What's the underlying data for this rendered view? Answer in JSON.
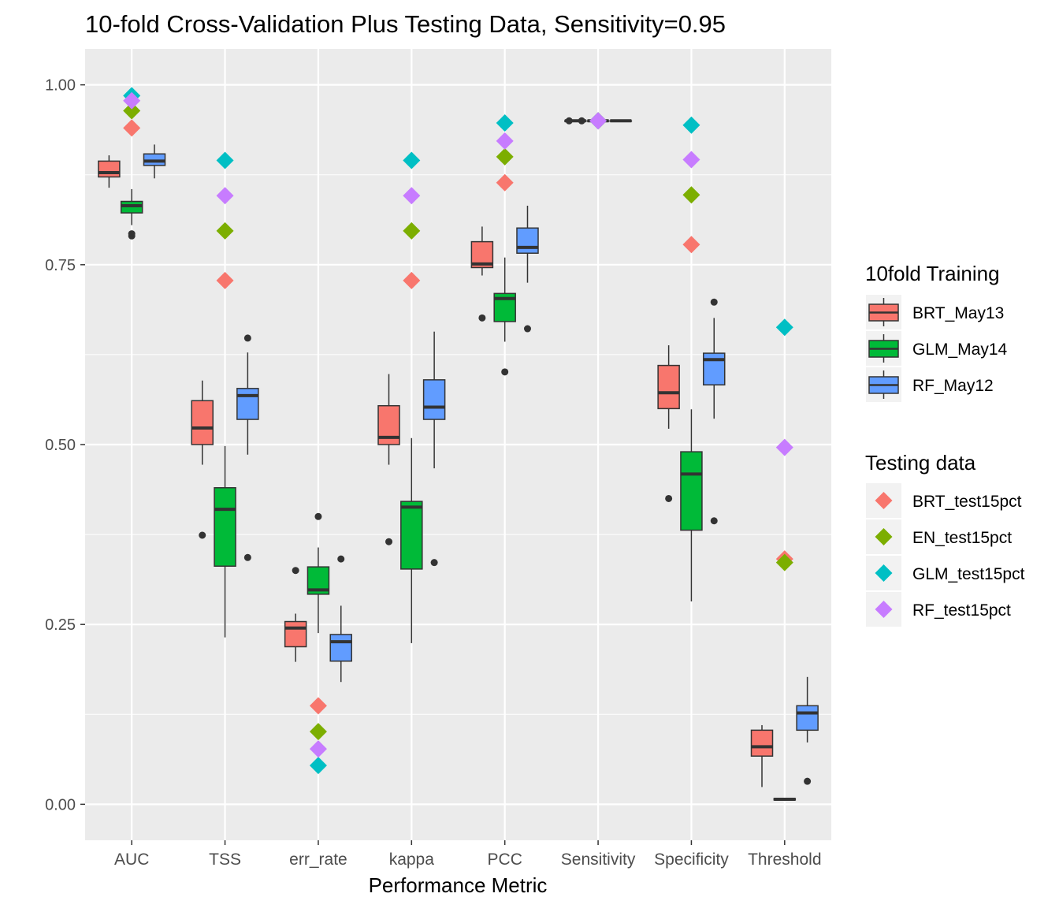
{
  "chart_data": {
    "type": "boxplot",
    "title": "10-fold Cross-Validation Plus Testing Data, Sensitivity=0.95",
    "xlabel": "Performance Metric",
    "ylabel": "",
    "ylim": [
      -0.05,
      1.05
    ],
    "yticks": [
      "0.00",
      "0.25",
      "0.50",
      "0.75",
      "1.00"
    ],
    "categories": [
      "AUC",
      "TSS",
      "err_rate",
      "kappa",
      "PCC",
      "Sensitivity",
      "Specificity",
      "Threshold"
    ],
    "background": "#EBEBEB",
    "grid": true,
    "legend_position": "right",
    "legends": [
      {
        "title": "10fold Training",
        "entries": [
          {
            "name": "BRT_May13",
            "color": "#F8766D"
          },
          {
            "name": "GLM_May14",
            "color": "#00BA38"
          },
          {
            "name": "RF_May12",
            "color": "#619CFF"
          }
        ]
      },
      {
        "title": "Testing data",
        "entries": [
          {
            "name": "BRT_test15pct",
            "color": "#F8766D"
          },
          {
            "name": "EN_test15pct",
            "color": "#7CAE00"
          },
          {
            "name": "GLM_test15pct",
            "color": "#00BFC4"
          },
          {
            "name": "RF_test15pct",
            "color": "#C77CFF"
          }
        ]
      }
    ],
    "box_series": [
      {
        "name": "BRT_May13",
        "color": "#F8766D",
        "boxes": [
          {
            "category": "AUC",
            "whisker_low": 0.857,
            "q1": 0.872,
            "median": 0.878,
            "q3": 0.894,
            "whisker_high": 0.902,
            "outliers": []
          },
          {
            "category": "TSS",
            "whisker_low": 0.472,
            "q1": 0.5,
            "median": 0.523,
            "q3": 0.561,
            "whisker_high": 0.589,
            "outliers": [
              0.374
            ]
          },
          {
            "category": "err_rate",
            "whisker_low": 0.198,
            "q1": 0.219,
            "median": 0.245,
            "q3": 0.254,
            "whisker_high": 0.265,
            "outliers": [
              0.325
            ]
          },
          {
            "category": "kappa",
            "whisker_low": 0.472,
            "q1": 0.5,
            "median": 0.51,
            "q3": 0.554,
            "whisker_high": 0.598,
            "outliers": [
              0.365
            ]
          },
          {
            "category": "PCC",
            "whisker_low": 0.735,
            "q1": 0.746,
            "median": 0.751,
            "q3": 0.782,
            "whisker_high": 0.803,
            "outliers": [
              0.676
            ]
          },
          {
            "category": "Sensitivity",
            "whisker_low": 0.95,
            "q1": 0.95,
            "median": 0.95,
            "q3": 0.95,
            "whisker_high": 0.95,
            "outliers": [
              0.95,
              0.95
            ]
          },
          {
            "category": "Specificity",
            "whisker_low": 0.522,
            "q1": 0.55,
            "median": 0.572,
            "q3": 0.61,
            "whisker_high": 0.638,
            "outliers": [
              0.425
            ]
          },
          {
            "category": "Threshold",
            "whisker_low": 0.024,
            "q1": 0.067,
            "median": 0.08,
            "q3": 0.103,
            "whisker_high": 0.11,
            "outliers": []
          }
        ]
      },
      {
        "name": "GLM_May14",
        "color": "#00BA38",
        "boxes": [
          {
            "category": "AUC",
            "whisker_low": 0.805,
            "q1": 0.822,
            "median": 0.832,
            "q3": 0.838,
            "whisker_high": 0.855,
            "outliers": [
              0.79,
              0.793
            ]
          },
          {
            "category": "TSS",
            "whisker_low": 0.232,
            "q1": 0.331,
            "median": 0.41,
            "q3": 0.44,
            "whisker_high": 0.498,
            "outliers": []
          },
          {
            "category": "err_rate",
            "whisker_low": 0.238,
            "q1": 0.292,
            "median": 0.298,
            "q3": 0.33,
            "whisker_high": 0.357,
            "outliers": [
              0.4
            ]
          },
          {
            "category": "kappa",
            "whisker_low": 0.224,
            "q1": 0.327,
            "median": 0.413,
            "q3": 0.421,
            "whisker_high": 0.509,
            "outliers": []
          },
          {
            "category": "PCC",
            "whisker_low": 0.643,
            "q1": 0.671,
            "median": 0.703,
            "q3": 0.71,
            "whisker_high": 0.76,
            "outliers": [
              0.601
            ]
          },
          {
            "category": "Sensitivity",
            "whisker_low": 0.95,
            "q1": 0.95,
            "median": 0.95,
            "q3": 0.95,
            "whisker_high": 0.95,
            "outliers": []
          },
          {
            "category": "Specificity",
            "whisker_low": 0.282,
            "q1": 0.381,
            "median": 0.459,
            "q3": 0.49,
            "whisker_high": 0.549,
            "outliers": []
          },
          {
            "category": "Threshold",
            "whisker_low": 0.006,
            "q1": 0.006,
            "median": 0.007,
            "q3": 0.008,
            "whisker_high": 0.008,
            "outliers": []
          }
        ]
      },
      {
        "name": "RF_May12",
        "color": "#619CFF",
        "boxes": [
          {
            "category": "AUC",
            "whisker_low": 0.87,
            "q1": 0.888,
            "median": 0.894,
            "q3": 0.904,
            "whisker_high": 0.917,
            "outliers": []
          },
          {
            "category": "TSS",
            "whisker_low": 0.486,
            "q1": 0.535,
            "median": 0.568,
            "q3": 0.578,
            "whisker_high": 0.628,
            "outliers": [
              0.343,
              0.648
            ]
          },
          {
            "category": "err_rate",
            "whisker_low": 0.17,
            "q1": 0.199,
            "median": 0.226,
            "q3": 0.236,
            "whisker_high": 0.276,
            "outliers": [
              0.341
            ]
          },
          {
            "category": "kappa",
            "whisker_low": 0.467,
            "q1": 0.535,
            "median": 0.552,
            "q3": 0.59,
            "whisker_high": 0.657,
            "outliers": [
              0.336
            ]
          },
          {
            "category": "PCC",
            "whisker_low": 0.725,
            "q1": 0.766,
            "median": 0.774,
            "q3": 0.801,
            "whisker_high": 0.832,
            "outliers": [
              0.661
            ]
          },
          {
            "category": "Sensitivity",
            "whisker_low": 0.95,
            "q1": 0.95,
            "median": 0.95,
            "q3": 0.95,
            "whisker_high": 0.95,
            "outliers": []
          },
          {
            "category": "Specificity",
            "whisker_low": 0.536,
            "q1": 0.583,
            "median": 0.618,
            "q3": 0.627,
            "whisker_high": 0.676,
            "outliers": [
              0.394,
              0.698
            ]
          },
          {
            "category": "Threshold",
            "whisker_low": 0.086,
            "q1": 0.103,
            "median": 0.127,
            "q3": 0.137,
            "whisker_high": 0.177,
            "outliers": [
              0.032
            ]
          }
        ]
      }
    ],
    "point_series": [
      {
        "name": "BRT_test15pct",
        "color": "#F8766D",
        "values": [
          0.94,
          0.728,
          0.137,
          0.728,
          0.864,
          0.95,
          0.778,
          0.341
        ]
      },
      {
        "name": "EN_test15pct",
        "color": "#7CAE00",
        "values": [
          0.964,
          0.797,
          0.101,
          0.797,
          0.9,
          0.95,
          0.847,
          0.336
        ]
      },
      {
        "name": "GLM_test15pct",
        "color": "#00BFC4",
        "values": [
          0.985,
          0.895,
          0.054,
          0.895,
          0.947,
          0.95,
          0.944,
          0.663
        ]
      },
      {
        "name": "RF_test15pct",
        "color": "#C77CFF",
        "values": [
          0.978,
          0.846,
          0.077,
          0.846,
          0.922,
          0.95,
          0.896,
          0.496
        ]
      }
    ]
  }
}
